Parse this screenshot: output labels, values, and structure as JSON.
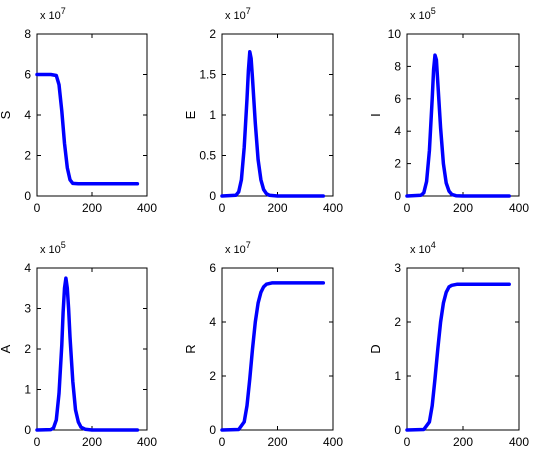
{
  "chart_data": [
    {
      "type": "line",
      "ylabel": "S",
      "exponent_base": "x 10",
      "exponent_power": "7",
      "xlim": [
        0,
        400
      ],
      "ylim": [
        0,
        8
      ],
      "x_ticks": [
        0,
        200,
        400
      ],
      "y_ticks": [
        0,
        2,
        4,
        6,
        8
      ],
      "color": "#0000ff",
      "series": [
        {
          "x": [
            0,
            50,
            70,
            80,
            90,
            100,
            110,
            120,
            130,
            150,
            200,
            300,
            365
          ],
          "y": [
            6.0,
            6.0,
            5.95,
            5.5,
            4.2,
            2.6,
            1.4,
            0.8,
            0.62,
            0.6,
            0.6,
            0.6,
            0.6
          ]
        }
      ]
    },
    {
      "type": "line",
      "ylabel": "E",
      "exponent_base": "x 10",
      "exponent_power": "7",
      "xlim": [
        0,
        400
      ],
      "ylim": [
        0,
        2
      ],
      "x_ticks": [
        0,
        200,
        400
      ],
      "y_ticks": [
        0,
        0.5,
        1,
        1.5,
        2
      ],
      "color": "#0000ff",
      "series": [
        {
          "x": [
            0,
            50,
            60,
            70,
            80,
            90,
            95,
            100,
            105,
            110,
            120,
            130,
            140,
            150,
            160,
            170,
            200,
            365
          ],
          "y": [
            0,
            0.01,
            0.05,
            0.2,
            0.6,
            1.2,
            1.55,
            1.78,
            1.7,
            1.45,
            0.9,
            0.45,
            0.2,
            0.08,
            0.03,
            0.01,
            0,
            0
          ]
        }
      ]
    },
    {
      "type": "line",
      "ylabel": "I",
      "exponent_base": "x 10",
      "exponent_power": "5",
      "xlim": [
        0,
        400
      ],
      "ylim": [
        0,
        10
      ],
      "x_ticks": [
        0,
        200,
        400
      ],
      "y_ticks": [
        0,
        2,
        4,
        6,
        8,
        10
      ],
      "color": "#0000ff",
      "series": [
        {
          "x": [
            0,
            50,
            60,
            70,
            80,
            90,
            95,
            100,
            105,
            110,
            120,
            130,
            140,
            150,
            160,
            175,
            200,
            365
          ],
          "y": [
            0,
            0.05,
            0.2,
            0.9,
            2.8,
            6.0,
            7.8,
            8.7,
            8.4,
            7.0,
            4.2,
            2.0,
            0.8,
            0.3,
            0.1,
            0.02,
            0,
            0
          ]
        }
      ]
    },
    {
      "type": "line",
      "ylabel": "A",
      "exponent_base": "x 10",
      "exponent_power": "5",
      "xlim": [
        0,
        400
      ],
      "ylim": [
        0,
        4
      ],
      "x_ticks": [
        0,
        200,
        400
      ],
      "y_ticks": [
        0,
        1,
        2,
        3,
        4
      ],
      "color": "#0000ff",
      "series": [
        {
          "x": [
            0,
            50,
            60,
            70,
            80,
            90,
            95,
            100,
            105,
            110,
            115,
            120,
            130,
            140,
            150,
            160,
            175,
            200,
            365
          ],
          "y": [
            0,
            0.01,
            0.05,
            0.25,
            0.9,
            2.1,
            2.9,
            3.5,
            3.75,
            3.5,
            3.0,
            2.3,
            1.2,
            0.5,
            0.2,
            0.07,
            0.02,
            0,
            0
          ]
        }
      ]
    },
    {
      "type": "line",
      "ylabel": "R",
      "exponent_base": "x 10",
      "exponent_power": "7",
      "xlim": [
        0,
        400
      ],
      "ylim": [
        0,
        6
      ],
      "x_ticks": [
        0,
        200,
        400
      ],
      "y_ticks": [
        0,
        2,
        4,
        6
      ],
      "color": "#0000ff",
      "series": [
        {
          "x": [
            0,
            60,
            80,
            90,
            100,
            110,
            120,
            130,
            140,
            150,
            160,
            180,
            200,
            300,
            365
          ],
          "y": [
            0,
            0.02,
            0.3,
            0.9,
            1.9,
            3.0,
            4.0,
            4.7,
            5.1,
            5.3,
            5.4,
            5.45,
            5.45,
            5.45,
            5.45
          ]
        }
      ]
    },
    {
      "type": "line",
      "ylabel": "D",
      "exponent_base": "x 10",
      "exponent_power": "4",
      "xlim": [
        0,
        400
      ],
      "ylim": [
        0,
        3
      ],
      "x_ticks": [
        0,
        200,
        400
      ],
      "y_ticks": [
        0,
        1,
        2,
        3
      ],
      "color": "#0000ff",
      "series": [
        {
          "x": [
            0,
            60,
            80,
            90,
            100,
            110,
            120,
            130,
            140,
            150,
            160,
            180,
            200,
            300,
            365
          ],
          "y": [
            0,
            0.01,
            0.15,
            0.45,
            0.95,
            1.5,
            2.0,
            2.35,
            2.55,
            2.65,
            2.68,
            2.7,
            2.7,
            2.7,
            2.7
          ]
        }
      ]
    }
  ]
}
